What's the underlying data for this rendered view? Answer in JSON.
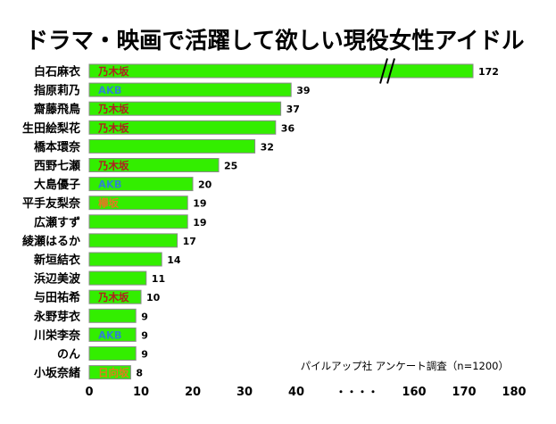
{
  "chart_data": {
    "type": "bar",
    "orientation": "horizontal",
    "title": "ドラマ・映画で活躍して欲しい現役女性アイドル",
    "source_note": "パイルアップ社 アンケート調査（n=1200）",
    "axis_break_label": "・・・・",
    "x_ticks": [
      "0",
      "10",
      "20",
      "30",
      "40",
      "160",
      "170",
      "180"
    ],
    "categories": [
      "白石麻衣",
      "指原莉乃",
      "齋藤飛鳥",
      "生田絵梨花",
      "橋本環奈",
      "西野七瀬",
      "大島優子",
      "平手友梨奈",
      "広瀬すず",
      "綾瀬はるか",
      "新垣結衣",
      "浜辺美波",
      "与田祐希",
      "永野芽衣",
      "川栄李奈",
      "のん",
      "小坂奈緒"
    ],
    "values": [
      172,
      39,
      37,
      36,
      32,
      25,
      20,
      19,
      19,
      17,
      14,
      11,
      10,
      9,
      9,
      9,
      8
    ],
    "groups": [
      "乃木坂",
      "AKB",
      "乃木坂",
      "乃木坂",
      "",
      "乃木坂",
      "AKB",
      "欅坂",
      "",
      "",
      "",
      "",
      "乃木坂",
      "",
      "AKB",
      "",
      "日向坂"
    ],
    "group_colors": {
      "乃木坂": "#b02020",
      "AKB": "#2f86c8",
      "欅坂": "#e07b20",
      "日向坂": "#e07b20"
    },
    "bar_color": "#33ee00",
    "bar_border": "#8a8a8a",
    "axis_break": {
      "from": 40,
      "to": 160
    },
    "grid": false,
    "legend": "none"
  }
}
